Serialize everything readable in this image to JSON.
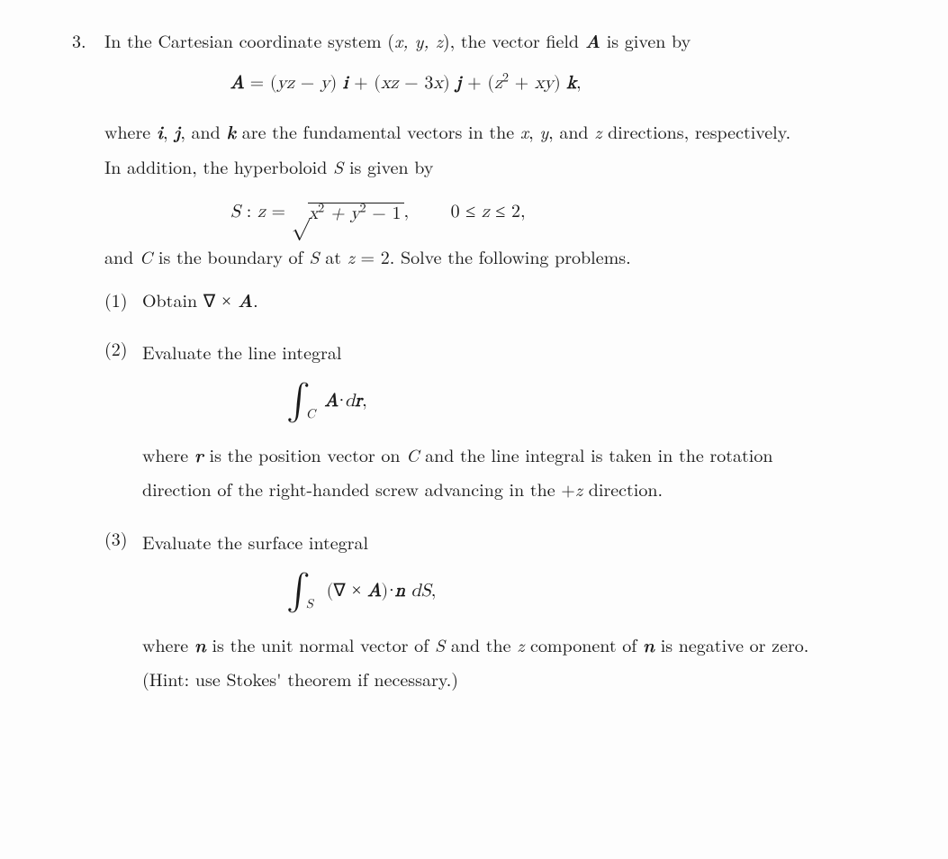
{
  "problem": {
    "number": "3.",
    "intro_pre": "In the Cartesian coordinate system (",
    "coords": "x, y, z",
    "intro_mid": "), the vector field ",
    "A": "A",
    "intro_post": " is given by",
    "eqA_lhs": "A",
    "eqA_eq": " = (",
    "eqA_t1a": "yz",
    "eqA_t1b": " − ",
    "eqA_t1c": "y",
    "eqA_t1d": ") ",
    "eqA_i": "i",
    "eqA_p1": " + (",
    "eqA_t2a": "xz",
    "eqA_t2b": " − 3",
    "eqA_t2c": "x",
    "eqA_t2d": ") ",
    "eqA_j": "j",
    "eqA_p2": " + (",
    "eqA_t3a": "z",
    "eqA_t3b": " + ",
    "eqA_t3c": "xy",
    "eqA_t3d": ") ",
    "eqA_k": "k",
    "eqA_end": ",",
    "sq2": "2",
    "where1_a": "where ",
    "where1_b": ", ",
    "where1_c": ", and ",
    "where1_d": " are the fundamental vectors in the ",
    "where1_x": "x",
    "where1_e": ", ",
    "where1_y": "y",
    "where1_f": ", and ",
    "where1_z": "z",
    "where1_g": " directions, respectively.",
    "addition_a": "In addition, the hyperboloid ",
    "S": "S",
    "addition_b": " is given by",
    "eqS_pre": "S",
    "eqS_col": " :   ",
    "eqS_zvar": "z",
    "eqS_eq": " = ",
    "eqS_rad": "x",
    "eqS_rad2": " + y",
    "eqS_rad3": " − 1",
    "eqS_comma": ",",
    "eqS_range_a": "0 ",
    "eqS_leq1": "≤",
    "eqS_range_b": " z ",
    "eqS_leq2": "≤",
    "eqS_range_c": " 2,",
    "andC_a": "and ",
    "C": "C",
    "andC_b": " is the boundary of ",
    "andC_c": " at ",
    "andC_z": "z",
    "andC_d": " = 2. Solve the following problems.",
    "parts": {
      "p1": {
        "num": "(1)",
        "text_a": "Obtain ",
        "nabla": "∇",
        "times": "×",
        "text_b": ".",
        "A": "A"
      },
      "p2": {
        "num": "(2)",
        "text_a": "Evaluate the line integral",
        "int_sub": "C",
        "A": "A",
        "dr_d": "d",
        "dr_r": "r",
        "comma": ",",
        "where_a": "where ",
        "r": "r",
        "where_b": " is the position vector on ",
        "C": "C",
        "where_c": " and the line integral is taken in the rotation",
        "where_d": "direction of the right-handed screw advancing in the +",
        "where_z": "z",
        "where_e": " direction."
      },
      "p3": {
        "num": "(3)",
        "text_a": "Evaluate the surface integral",
        "int_sub": "S",
        "nabla": "∇",
        "times": "×",
        "A": "A",
        "n": "n",
        "dS_d": "d",
        "dS_S": "S",
        "comma": ",",
        "where_a": "where ",
        "where_b": " is the unit normal vector of ",
        "S": "S",
        "where_c": " and the ",
        "where_z": "z",
        "where_d": " component of ",
        "where_e": " is negative or zero.",
        "hint": "(Hint: use Stokes' theorem if necessary.)"
      }
    }
  },
  "style": {
    "text_color": "#1a1a1a",
    "background": "#fdfdfd",
    "body_fontsize": 20,
    "math_display_fontsize": 20,
    "integral_fontsize": 40
  }
}
